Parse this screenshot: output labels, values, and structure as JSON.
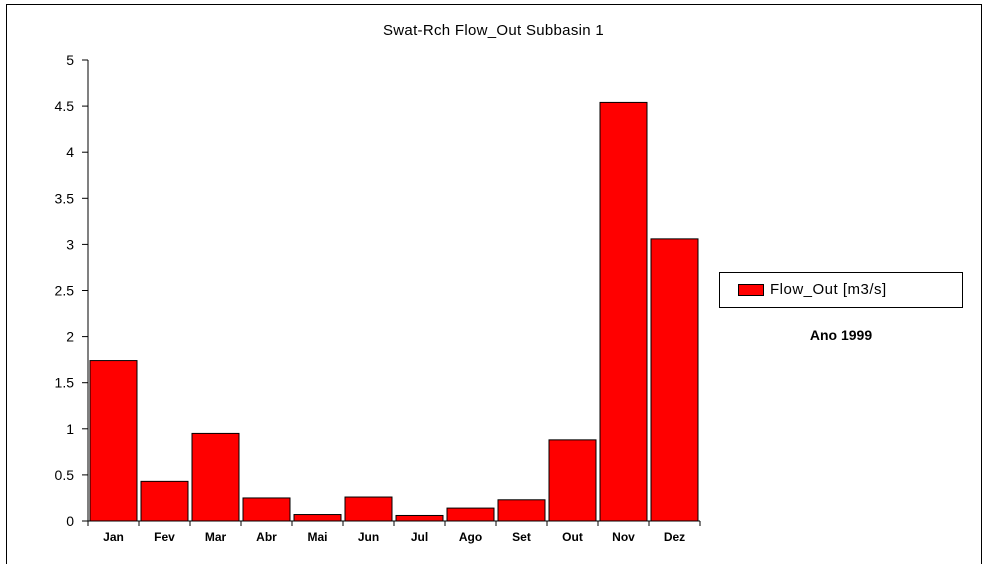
{
  "chart_data": {
    "type": "bar",
    "title": "Swat-Rch Flow_Out Subbasin 1",
    "categories": [
      "Jan",
      "Fev",
      "Mar",
      "Abr",
      "Mai",
      "Jun",
      "Jul",
      "Ago",
      "Set",
      "Out",
      "Nov",
      "Dez"
    ],
    "series": [
      {
        "name": "Flow_Out [m3/s]",
        "values": [
          1.74,
          0.43,
          0.95,
          0.25,
          0.07,
          0.26,
          0.06,
          0.14,
          0.23,
          0.88,
          4.54,
          3.06
        ],
        "color": "#ff0000"
      }
    ],
    "yticks": [
      "0",
      "0.5",
      "1",
      "1.5",
      "2",
      "2.5",
      "3",
      "3.5",
      "4",
      "4.5",
      "5"
    ],
    "ylim": [
      0,
      5
    ],
    "xlabel": "",
    "ylabel": "",
    "grid": false,
    "legend_position": "right",
    "annotation": "Ano 1999"
  }
}
